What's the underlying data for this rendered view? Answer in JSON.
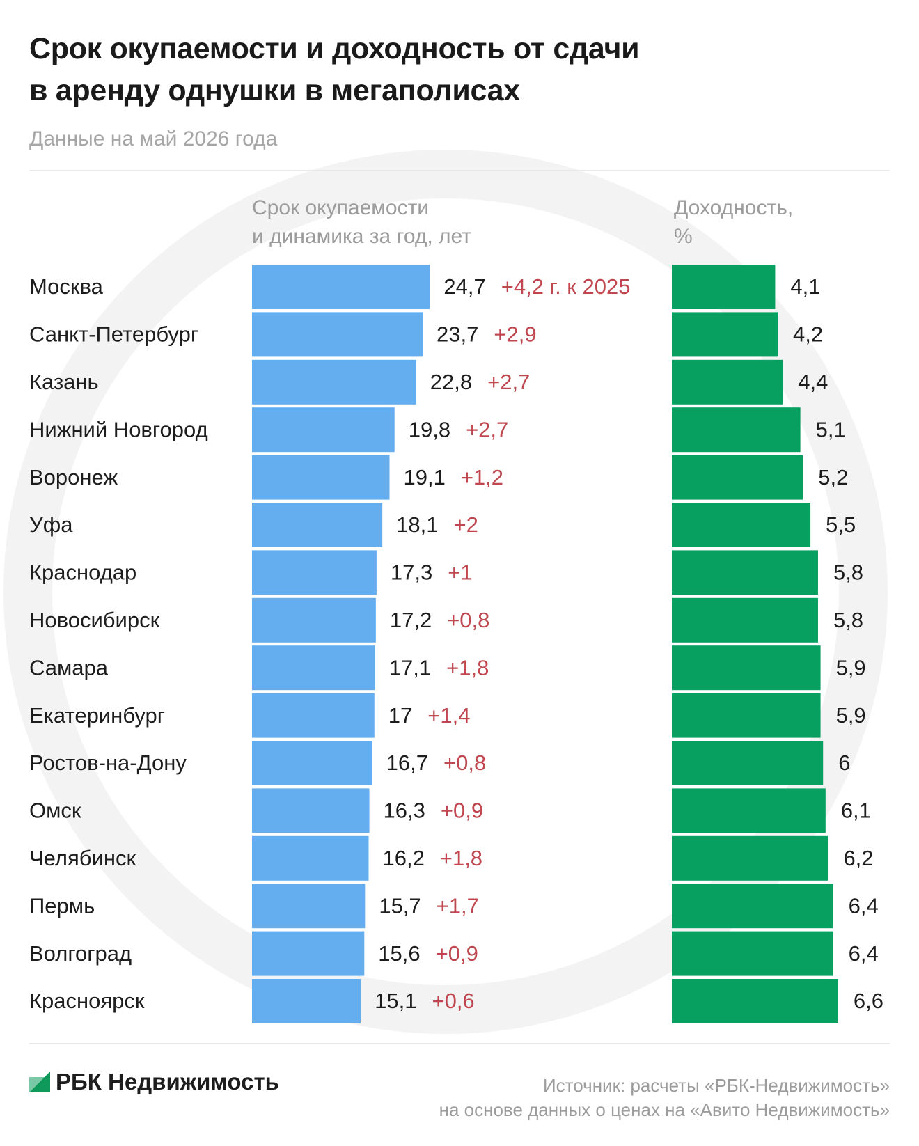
{
  "title_line1": "Срок окупаемости и доходность от сдачи",
  "title_line2": "в аренду однушки в мегаполисах",
  "subtitle": "Данные на май 2026 года",
  "column_payback_line1": "Срок окупаемости",
  "column_payback_line2": "и динамика за год, лет",
  "column_yield_line1": "Доходность,",
  "column_yield_line2": "%",
  "brand": "РБК Недвижимость",
  "source_line1": "Источник: расчеты «РБК-Недвижимость»",
  "source_line2": "на основе данных о ценах на «Авито Недвижимость»",
  "colors": {
    "payback_bar": "#64aef0",
    "yield_bar": "#08a060",
    "change_text": "#c0474f",
    "brand_mark": "#0f9a5c"
  },
  "chart_data": {
    "type": "bar",
    "orientation": "horizontal",
    "categories": [
      "Москва",
      "Санкт-Петербург",
      "Казань",
      "Нижний Новгород",
      "Воронеж",
      "Уфа",
      "Краснодар",
      "Новосибирск",
      "Самара",
      "Екатеринбург",
      "Ростов-на-Дону",
      "Омск",
      "Челябинск",
      "Пермь",
      "Волгоград",
      "Красноярск"
    ],
    "series": [
      {
        "name": "Срок окупаемости и динамика за год, лет",
        "values": [
          24.7,
          23.7,
          22.8,
          19.8,
          19.1,
          18.1,
          17.3,
          17.2,
          17.1,
          17,
          16.7,
          16.3,
          16.2,
          15.7,
          15.6,
          15.1
        ],
        "labels": [
          "24,7",
          "23,7",
          "22,8",
          "19,8",
          "19,1",
          "18,1",
          "17,3",
          "17,2",
          "17,1",
          "17",
          "16,7",
          "16,3",
          "16,2",
          "15,7",
          "15,6",
          "15,1"
        ],
        "change_labels": [
          "+4,2 г. к 2025",
          "+2,9",
          "+2,7",
          "+2,7",
          "+1,2",
          "+2",
          "+1",
          "+0,8",
          "+1,8",
          "+1,4",
          "+0,8",
          "+0,9",
          "+1,8",
          "+1,7",
          "+0,9",
          "+0,6"
        ]
      },
      {
        "name": "Доходность, %",
        "values": [
          4.1,
          4.2,
          4.4,
          5.1,
          5.2,
          5.5,
          5.8,
          5.8,
          5.9,
          5.9,
          6,
          6.1,
          6.2,
          6.4,
          6.4,
          6.6
        ],
        "labels": [
          "4,1",
          "4,2",
          "4,4",
          "5,1",
          "5,2",
          "5,5",
          "5,8",
          "5,8",
          "5,9",
          "5,9",
          "6",
          "6,1",
          "6,2",
          "6,4",
          "6,4",
          "6,6"
        ]
      }
    ],
    "grid": false,
    "legend": "none"
  }
}
